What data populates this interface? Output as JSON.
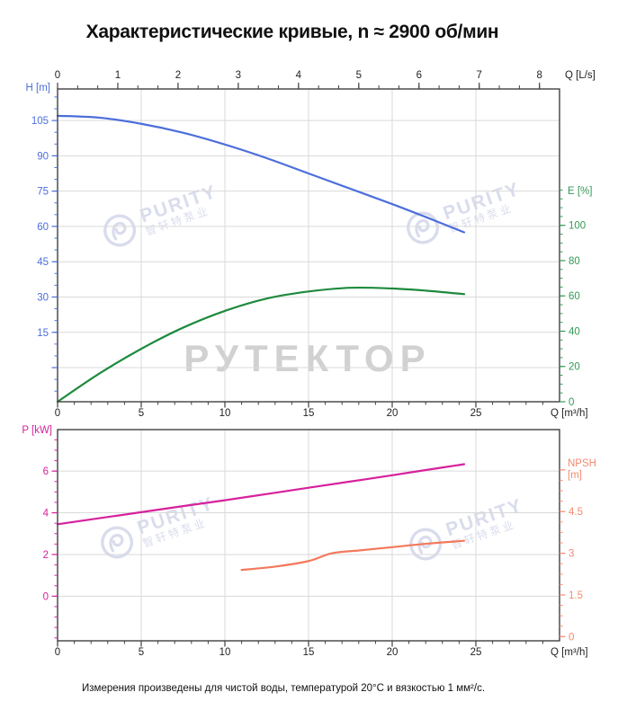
{
  "title": "Характеристические кривые, n ≈ 2900 об/мин",
  "caption": "Измерения произведены для чистой воды, температурой 20°C и вязкостью 1 мм²/с.",
  "watermarks": {
    "rutektor": "РУТЕКТОР",
    "purity_title": "PURITY",
    "purity_subtitle": "智轩特泵业"
  },
  "colors": {
    "head": "#4c6edb",
    "efficiency": "#1e8a3e",
    "power": "#d6219c",
    "npsh": "#f3795c",
    "grid": "#d9d9d9",
    "frame": "#404040",
    "axis_text": "#222222"
  },
  "chart_data": [
    {
      "type": "line",
      "x_axis_bottom": {
        "label": "Q [m³/h]",
        "range": [
          0,
          30
        ],
        "majors": [
          0,
          5,
          10,
          15,
          20,
          25
        ],
        "minor_step": 1,
        "minor_range": [
          0,
          29
        ],
        "color": "#222222"
      },
      "x_axis_top": {
        "label": "Q [L/s]",
        "range": [
          0,
          8.333
        ],
        "majors": [
          0,
          1,
          2,
          3,
          4,
          5,
          6,
          7,
          8
        ],
        "minor_step": 0.33333,
        "minor_range": [
          0,
          8
        ],
        "color": "#222222"
      },
      "y_axis_left": {
        "label": "H [m]",
        "range": [
          -14.5,
          118.4
        ],
        "majors": [
          0,
          15,
          30,
          45,
          60,
          75,
          90,
          105
        ],
        "labels": [
          15,
          30,
          45,
          60,
          75,
          90,
          105
        ],
        "minor_step": 5,
        "minor_range": [
          -10,
          115
        ],
        "color": "#4c6ede"
      },
      "y_axis_right": {
        "label": "E [%]",
        "range": [
          0,
          177.3
        ],
        "majors": [
          0,
          20,
          40,
          60,
          80,
          100
        ],
        "labels": [
          0,
          20,
          40,
          60,
          80,
          100
        ],
        "minor_step": 5,
        "minor_range": [
          0,
          120
        ],
        "color": "#339955"
      },
      "grid_x": [
        5,
        10,
        15,
        20,
        25
      ],
      "grid_y": [
        0,
        15,
        30,
        45,
        60,
        75,
        90,
        105
      ],
      "series": [
        {
          "name": "head-curve",
          "axis": "left",
          "color": "#4c6edb",
          "points": [
            [
              0,
              107
            ],
            [
              2.5,
              106.2
            ],
            [
              5,
              103.6
            ],
            [
              7.5,
              99.8
            ],
            [
              10,
              94.8
            ],
            [
              12.5,
              89
            ],
            [
              15,
              82.5
            ],
            [
              17.5,
              76
            ],
            [
              20,
              69.5
            ],
            [
              22,
              64
            ],
            [
              24.3,
              57.5
            ]
          ]
        },
        {
          "name": "efficiency-curve",
          "axis": "right",
          "color": "#1e8a3e",
          "points": [
            [
              0,
              0
            ],
            [
              2.5,
              16
            ],
            [
              5,
              30
            ],
            [
              7.5,
              42
            ],
            [
              10,
              51.5
            ],
            [
              12.5,
              58.5
            ],
            [
              15,
              62.5
            ],
            [
              17.5,
              64.6
            ],
            [
              20,
              64.2
            ],
            [
              22,
              63
            ],
            [
              24.3,
              61
            ]
          ]
        }
      ]
    },
    {
      "type": "line",
      "x_axis_bottom": {
        "label": "Q [m³/h]",
        "range": [
          0,
          30
        ],
        "majors": [
          0,
          5,
          10,
          15,
          20,
          25
        ],
        "minor_step": 1,
        "minor_range": [
          0,
          29
        ],
        "color": "#222222"
      },
      "y_axis_left": {
        "label": "P [kW]",
        "range": [
          -2.14,
          7.99
        ],
        "majors": [
          0,
          2,
          4,
          6
        ],
        "labels": [
          0,
          2,
          4,
          6
        ],
        "minor_step": 0.5,
        "minor_range": [
          -2,
          7.5
        ],
        "color": "#d6219c"
      },
      "y_axis_right": {
        "label": "NPSH\n[m]",
        "range": [
          -0.15,
          7.45
        ],
        "majors": [
          0,
          1.5,
          3,
          4.5,
          6
        ],
        "labels": [
          0,
          1.5,
          3,
          4.5
        ],
        "minor_step": 0.375,
        "minor_range": [
          0,
          6
        ],
        "color": "#f58a70"
      },
      "grid_x": [
        5,
        10,
        15,
        20,
        25
      ],
      "grid_y": [
        0,
        2,
        4,
        6
      ],
      "series": [
        {
          "name": "power-curve",
          "axis": "left",
          "color": "#d6219c",
          "points": [
            [
              0,
              3.45
            ],
            [
              2.5,
              3.74
            ],
            [
              5,
              4.03
            ],
            [
              7.5,
              4.32
            ],
            [
              10,
              4.6
            ],
            [
              12.5,
              4.9
            ],
            [
              15,
              5.2
            ],
            [
              17.5,
              5.5
            ],
            [
              20,
              5.8
            ],
            [
              22,
              6.05
            ],
            [
              24.3,
              6.33
            ]
          ]
        },
        {
          "name": "npsh-curve",
          "axis": "right",
          "color": "#f3795c",
          "points": [
            [
              11,
              2.4
            ],
            [
              13,
              2.52
            ],
            [
              15,
              2.72
            ],
            [
              16.4,
              3
            ],
            [
              18,
              3.1
            ],
            [
              20,
              3.22
            ],
            [
              22,
              3.34
            ],
            [
              24.3,
              3.45
            ]
          ]
        }
      ]
    }
  ]
}
